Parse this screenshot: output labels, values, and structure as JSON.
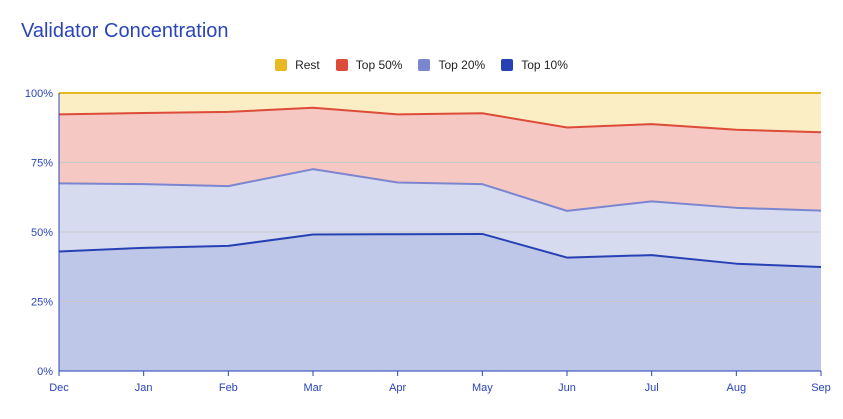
{
  "chart_data": {
    "type": "area",
    "title": "Validator Concentration",
    "categories": [
      "Dec",
      "Jan",
      "Feb",
      "Mar",
      "Apr",
      "May",
      "Jun",
      "Jul",
      "Aug",
      "Sep"
    ],
    "y_ticks": [
      "0%",
      "25%",
      "50%",
      "75%",
      "100%"
    ],
    "ylim": [
      0,
      100
    ],
    "series": [
      {
        "name": "Rest",
        "line": "#e8b923",
        "fill": "#fbedc4",
        "values": [
          100,
          100,
          100,
          100,
          100,
          100,
          100,
          100,
          100,
          100
        ]
      },
      {
        "name": "Top 50%",
        "line": "#dd4b39",
        "fill": "#f5c8c3",
        "values": [
          92.3,
          92.8,
          93.2,
          94.7,
          92.3,
          92.7,
          87.6,
          88.8,
          86.8,
          85.9
        ]
      },
      {
        "name": "Top 20%",
        "line": "#7b86cf",
        "fill": "#d7dbef",
        "values": [
          67.5,
          67.2,
          66.5,
          72.6,
          67.8,
          67.2,
          57.6,
          61.0,
          58.7,
          57.7
        ]
      },
      {
        "name": "Top 10%",
        "line": "#2741b5",
        "fill": "#bec7e8",
        "values": [
          43.0,
          44.3,
          45.0,
          49.1,
          49.2,
          49.3,
          40.8,
          41.7,
          38.6,
          37.4
        ]
      }
    ]
  }
}
